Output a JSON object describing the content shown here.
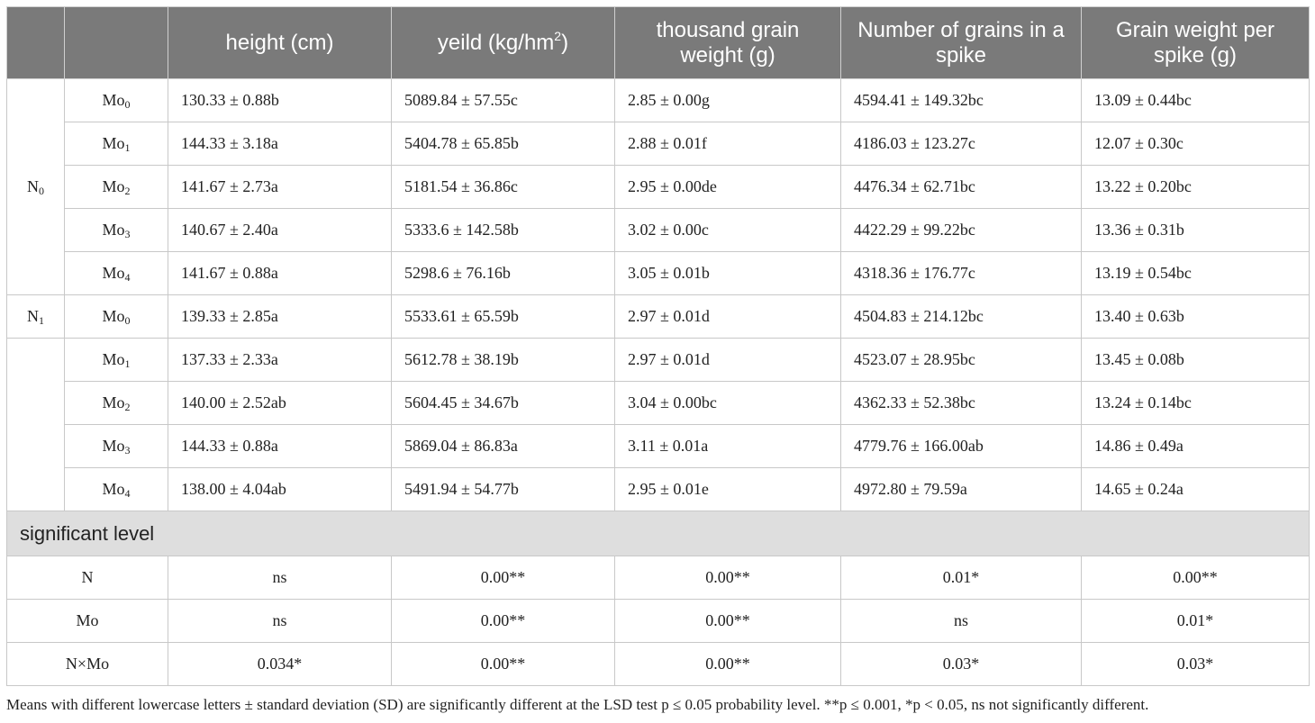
{
  "headers": {
    "height": "height (cm)",
    "yield_base": "yeild (kg/hm",
    "yield_sup": "2",
    "yield_end": ")",
    "tgw": "thousand grain weight (g)",
    "grains": "Number of grains in a spike",
    "gws": "Grain weight per spike (g)"
  },
  "groups": [
    {
      "label_base": "N",
      "label_sub": "0",
      "rows": [
        {
          "level_base": "Mo",
          "level_sub": "0",
          "height": "130.33 ± 0.88b",
          "yield": "5089.84 ± 57.55c",
          "tgw": "2.85 ± 0.00g",
          "grains": "4594.41 ± 149.32bc",
          "gws": "13.09 ± 0.44bc"
        },
        {
          "level_base": "Mo",
          "level_sub": "1",
          "height": "144.33 ± 3.18a",
          "yield": "5404.78 ± 65.85b",
          "tgw": "2.88 ± 0.01f",
          "grains": "4186.03 ± 123.27c",
          "gws": "12.07 ± 0.30c"
        },
        {
          "level_base": "Mo",
          "level_sub": "2",
          "height": "141.67 ± 2.73a",
          "yield": "5181.54 ± 36.86c",
          "tgw": "2.95 ± 0.00de",
          "grains": "4476.34 ± 62.71bc",
          "gws": "13.22 ± 0.20bc"
        },
        {
          "level_base": "Mo",
          "level_sub": "3",
          "height": "140.67 ± 2.40a",
          "yield": "5333.6 ± 142.58b",
          "tgw": "3.02 ± 0.00c",
          "grains": "4422.29 ± 99.22bc",
          "gws": "13.36 ± 0.31b"
        },
        {
          "level_base": "Mo",
          "level_sub": "4",
          "height": "141.67 ± 0.88a",
          "yield": "5298.6 ± 76.16b",
          "tgw": "3.05 ± 0.01b",
          "grains": "4318.36 ± 176.77c",
          "gws": "13.19 ± 0.54bc"
        }
      ]
    },
    {
      "label_base": "N",
      "label_sub": "1",
      "rows": [
        {
          "level_base": "Mo",
          "level_sub": "0",
          "height": "139.33 ± 2.85a",
          "yield": "5533.61 ± 65.59b",
          "tgw": "2.97 ± 0.01d",
          "grains": "4504.83 ± 214.12bc",
          "gws": "13.40 ± 0.63b"
        },
        {
          "level_base": "Mo",
          "level_sub": "1",
          "height": "137.33 ± 2.33a",
          "yield": "5612.78 ± 38.19b",
          "tgw": "2.97 ± 0.01d",
          "grains": "4523.07 ± 28.95bc",
          "gws": "13.45 ± 0.08b"
        },
        {
          "level_base": "Mo",
          "level_sub": "2",
          "height": "140.00 ± 2.52ab",
          "yield": "5604.45 ± 34.67b",
          "tgw": "3.04 ± 0.00bc",
          "grains": "4362.33 ± 52.38bc",
          "gws": "13.24 ± 0.14bc"
        },
        {
          "level_base": "Mo",
          "level_sub": "3",
          "height": "144.33 ± 0.88a",
          "yield": "5869.04 ± 86.83a",
          "tgw": "3.11 ± 0.01a",
          "grains": "4779.76 ± 166.00ab",
          "gws": "14.86 ± 0.49a"
        },
        {
          "level_base": "Mo",
          "level_sub": "4",
          "height": "138.00 ± 4.04ab",
          "yield": "5491.94 ± 54.77b",
          "tgw": "2.95 ± 0.01e",
          "grains": "4972.80 ± 79.59a",
          "gws": "14.65 ± 0.24a"
        }
      ]
    }
  ],
  "significance": {
    "title": "significant level",
    "rows": [
      {
        "effect": "N",
        "height": "ns",
        "yield": "0.00**",
        "tgw": "0.00**",
        "grains": "0.01*",
        "gws": "0.00**"
      },
      {
        "effect": "Mo",
        "height": "ns",
        "yield": "0.00**",
        "tgw": "0.00**",
        "grains": "ns",
        "gws": "0.01*"
      },
      {
        "effect": "N×Mo",
        "height": "0.034*",
        "yield": "0.00**",
        "tgw": "0.00**",
        "grains": "0.03*",
        "gws": "0.03*"
      }
    ]
  },
  "footnote": "Means with different lowercase letters ± standard deviation (SD) are significantly different at the LSD test p ≤ 0.05 probability level. **p ≤ 0.001, *p < 0.05, ns not significantly different."
}
